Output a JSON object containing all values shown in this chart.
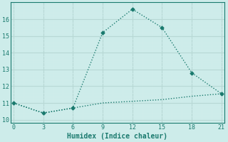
{
  "xlabel": "Humidex (Indice chaleur)",
  "background_color": "#cdecea",
  "line_color": "#1a7a6e",
  "grid_color": "#b8d8d5",
  "grid_color_minor": "#d0eceb",
  "series1_x": [
    0,
    3,
    6,
    9,
    12,
    15,
    18,
    21
  ],
  "series1_y": [
    11.0,
    10.4,
    10.7,
    15.2,
    16.6,
    15.5,
    12.8,
    11.55
  ],
  "series2_x": [
    0,
    3,
    6,
    9,
    12,
    15,
    18,
    21
  ],
  "series2_y": [
    11.0,
    10.4,
    10.7,
    11.0,
    11.1,
    11.2,
    11.4,
    11.55
  ],
  "xlim": [
    -0.3,
    21.3
  ],
  "ylim": [
    9.8,
    17.0
  ],
  "xticks": [
    0,
    3,
    6,
    9,
    12,
    15,
    18,
    21
  ],
  "yticks": [
    10,
    11,
    12,
    13,
    14,
    15,
    16
  ],
  "marker": "D",
  "markersize": 2.5,
  "linewidth": 1.0
}
